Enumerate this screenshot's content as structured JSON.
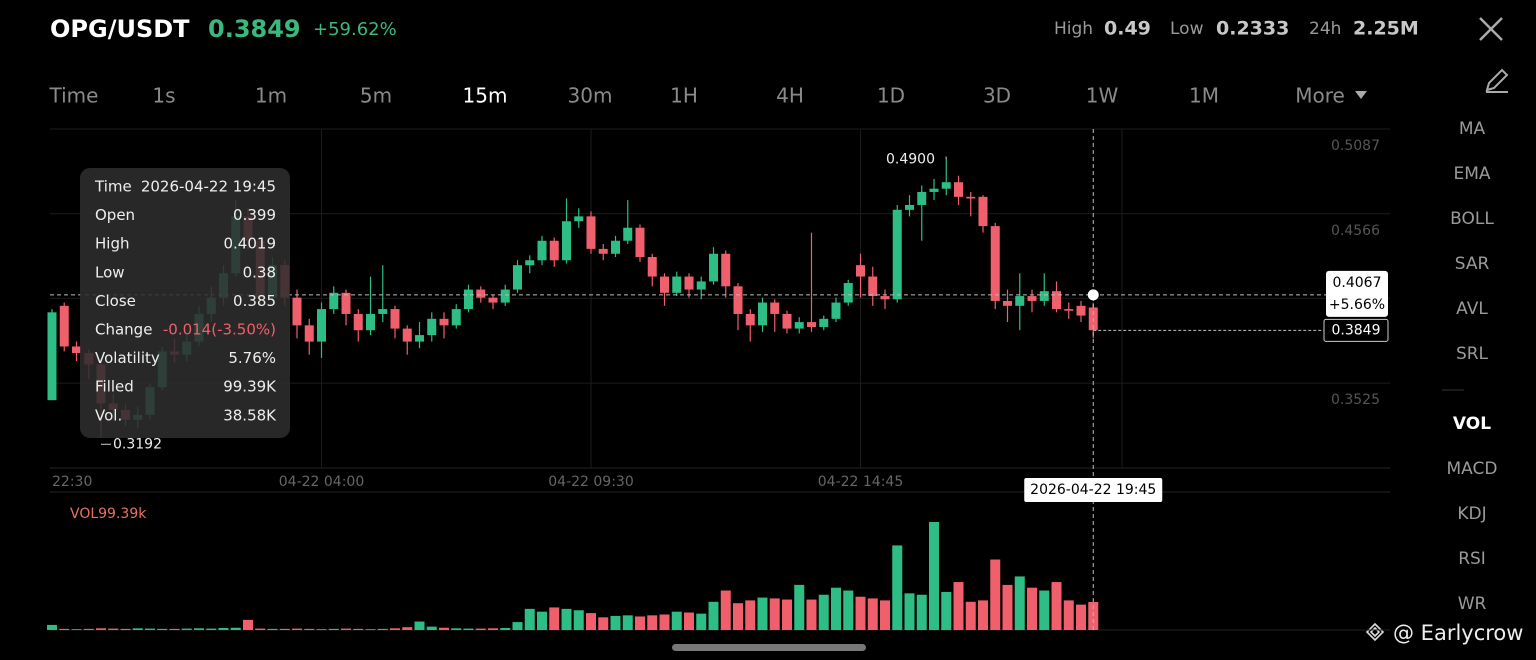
{
  "header": {
    "pair": "OPG/USDT",
    "price": "0.3849",
    "change": "+59.62%",
    "high_label": "High",
    "high": "0.49",
    "low_label": "Low",
    "low": "0.2333",
    "vol_label": "24h",
    "vol": "2.25M"
  },
  "tabs": [
    {
      "label": "Time"
    },
    {
      "label": "1s"
    },
    {
      "label": "1m"
    },
    {
      "label": "5m"
    },
    {
      "label": "15m",
      "active": true
    },
    {
      "label": "30m"
    },
    {
      "label": "1H"
    },
    {
      "label": "4H"
    },
    {
      "label": "1D"
    },
    {
      "label": "3D"
    },
    {
      "label": "1W"
    },
    {
      "label": "1M"
    },
    {
      "label": "More"
    }
  ],
  "indicators": [
    {
      "label": "MA"
    },
    {
      "label": "EMA"
    },
    {
      "label": "BOLL"
    },
    {
      "label": "SAR"
    },
    {
      "label": "AVL"
    },
    {
      "label": "SRL"
    },
    {
      "label": "VOL",
      "active": true
    },
    {
      "label": "MACD"
    },
    {
      "label": "KDJ"
    },
    {
      "label": "RSI"
    },
    {
      "label": "WR"
    }
  ],
  "chart": {
    "type": "candlestick",
    "up_color": "#2ebd85",
    "down_color": "#ef5f6c",
    "ylim": [
      0.3003,
      0.5087
    ],
    "yticks": [
      0.5087,
      0.4566,
      0.3525
    ],
    "xticks": [
      {
        "value": 0,
        "label": "22:30"
      },
      {
        "value": 22,
        "label": "04-22 04:00"
      },
      {
        "value": 44,
        "label": "04-22 09:30"
      },
      {
        "value": 66,
        "label": "04-22 14:45"
      }
    ],
    "candles": [
      [
        0.342,
        0.398,
        0.342,
        0.396
      ],
      [
        0.4,
        0.402,
        0.372,
        0.375
      ],
      [
        0.375,
        0.378,
        0.366,
        0.371
      ],
      [
        0.371,
        0.373,
        0.355,
        0.364
      ],
      [
        0.364,
        0.366,
        0.3192,
        0.34
      ],
      [
        0.34,
        0.346,
        0.33,
        0.336
      ],
      [
        0.336,
        0.34,
        0.326,
        0.33
      ],
      [
        0.33,
        0.338,
        0.325,
        0.333
      ],
      [
        0.333,
        0.352,
        0.33,
        0.35
      ],
      [
        0.35,
        0.375,
        0.348,
        0.372
      ],
      [
        0.372,
        0.38,
        0.365,
        0.37
      ],
      [
        0.37,
        0.382,
        0.366,
        0.378
      ],
      [
        0.378,
        0.4,
        0.375,
        0.395
      ],
      [
        0.395,
        0.412,
        0.39,
        0.405
      ],
      [
        0.405,
        0.425,
        0.4,
        0.42
      ],
      [
        0.42,
        0.465,
        0.418,
        0.455
      ],
      [
        0.455,
        0.46,
        0.435,
        0.44
      ],
      [
        0.44,
        0.442,
        0.4,
        0.405
      ],
      [
        0.405,
        0.43,
        0.402,
        0.425
      ],
      [
        0.425,
        0.428,
        0.4,
        0.405
      ],
      [
        0.405,
        0.41,
        0.38,
        0.388
      ],
      [
        0.388,
        0.392,
        0.37,
        0.378
      ],
      [
        0.378,
        0.402,
        0.368,
        0.398
      ],
      [
        0.398,
        0.412,
        0.395,
        0.408
      ],
      [
        0.408,
        0.41,
        0.388,
        0.395
      ],
      [
        0.395,
        0.398,
        0.378,
        0.385
      ],
      [
        0.385,
        0.418,
        0.382,
        0.395
      ],
      [
        0.395,
        0.425,
        0.39,
        0.398
      ],
      [
        0.398,
        0.4,
        0.38,
        0.386
      ],
      [
        0.386,
        0.388,
        0.37,
        0.378
      ],
      [
        0.378,
        0.39,
        0.374,
        0.382
      ],
      [
        0.382,
        0.396,
        0.378,
        0.392
      ],
      [
        0.392,
        0.396,
        0.38,
        0.388
      ],
      [
        0.388,
        0.401,
        0.386,
        0.398
      ],
      [
        0.398,
        0.413,
        0.396,
        0.41
      ],
      [
        0.41,
        0.412,
        0.402,
        0.405
      ],
      [
        0.405,
        0.407,
        0.398,
        0.402
      ],
      [
        0.402,
        0.413,
        0.4,
        0.41
      ],
      [
        0.41,
        0.428,
        0.408,
        0.425
      ],
      [
        0.425,
        0.431,
        0.42,
        0.428
      ],
      [
        0.428,
        0.443,
        0.425,
        0.44
      ],
      [
        0.44,
        0.442,
        0.424,
        0.428
      ],
      [
        0.428,
        0.466,
        0.426,
        0.452
      ],
      [
        0.452,
        0.46,
        0.448,
        0.455
      ],
      [
        0.455,
        0.458,
        0.432,
        0.435
      ],
      [
        0.435,
        0.438,
        0.428,
        0.432
      ],
      [
        0.432,
        0.443,
        0.43,
        0.44
      ],
      [
        0.44,
        0.465,
        0.438,
        0.448
      ],
      [
        0.448,
        0.45,
        0.427,
        0.43
      ],
      [
        0.43,
        0.432,
        0.412,
        0.418
      ],
      [
        0.418,
        0.42,
        0.4,
        0.408
      ],
      [
        0.408,
        0.421,
        0.406,
        0.418
      ],
      [
        0.418,
        0.42,
        0.405,
        0.41
      ],
      [
        0.41,
        0.418,
        0.404,
        0.415
      ],
      [
        0.415,
        0.436,
        0.413,
        0.432
      ],
      [
        0.432,
        0.434,
        0.405,
        0.412
      ],
      [
        0.412,
        0.414,
        0.385,
        0.395
      ],
      [
        0.395,
        0.398,
        0.378,
        0.388
      ],
      [
        0.388,
        0.405,
        0.384,
        0.402
      ],
      [
        0.402,
        0.404,
        0.384,
        0.395
      ],
      [
        0.395,
        0.397,
        0.383,
        0.386
      ],
      [
        0.386,
        0.393,
        0.383,
        0.39
      ],
      [
        0.39,
        0.445,
        0.384,
        0.387
      ],
      [
        0.387,
        0.394,
        0.385,
        0.392
      ],
      [
        0.392,
        0.405,
        0.39,
        0.402
      ],
      [
        0.402,
        0.416,
        0.4,
        0.414
      ],
      [
        0.425,
        0.432,
        0.405,
        0.418
      ],
      [
        0.418,
        0.424,
        0.4,
        0.406
      ],
      [
        0.406,
        0.41,
        0.398,
        0.404
      ],
      [
        0.404,
        0.462,
        0.402,
        0.459
      ],
      [
        0.459,
        0.468,
        0.455,
        0.462
      ],
      [
        0.462,
        0.474,
        0.44,
        0.47
      ],
      [
        0.47,
        0.478,
        0.465,
        0.472
      ],
      [
        0.472,
        0.49,
        0.468,
        0.476
      ],
      [
        0.476,
        0.48,
        0.462,
        0.467
      ],
      [
        0.467,
        0.47,
        0.455,
        0.466
      ],
      [
        0.467,
        0.468,
        0.445,
        0.449
      ],
      [
        0.449,
        0.451,
        0.398,
        0.403
      ],
      [
        0.403,
        0.41,
        0.39,
        0.4
      ],
      [
        0.4,
        0.42,
        0.385,
        0.406
      ],
      [
        0.406,
        0.41,
        0.396,
        0.403
      ],
      [
        0.403,
        0.42,
        0.4,
        0.409
      ],
      [
        0.409,
        0.415,
        0.396,
        0.398
      ],
      [
        0.398,
        0.402,
        0.392,
        0.397
      ],
      [
        0.4,
        0.403,
        0.39,
        0.394
      ],
      [
        0.399,
        0.4019,
        0.38,
        0.385
      ]
    ],
    "volume": [
      18,
      4,
      3,
      4,
      6,
      5,
      4,
      6,
      5,
      4,
      4,
      5,
      6,
      5,
      7,
      8,
      36,
      5,
      4,
      4,
      5,
      4,
      3,
      4,
      5,
      4,
      3,
      4,
      6,
      10,
      30,
      12,
      8,
      6,
      5,
      5,
      6,
      7,
      28,
      75,
      65,
      80,
      75,
      70,
      60,
      45,
      50,
      52,
      48,
      52,
      55,
      65,
      62,
      58,
      100,
      140,
      95,
      105,
      115,
      112,
      108,
      160,
      108,
      125,
      150,
      140,
      118,
      112,
      105,
      300,
      130,
      125,
      383,
      135,
      170,
      100,
      105,
      250,
      160,
      190,
      150,
      140,
      170,
      105,
      90,
      99.39
    ],
    "volume_label": "VOL99.39k",
    "high_annotation": {
      "label": "0.4900",
      "index": 73
    },
    "low_annotation": {
      "label": "0.3192",
      "index": 4
    },
    "crosshair": {
      "index": 85,
      "price": 0.4067,
      "change": "+5.66%",
      "time": "2026-04-22 19:45"
    },
    "last_price": 0.3849,
    "tooltip": [
      {
        "label": "Time",
        "value": "2026-04-22 19:45"
      },
      {
        "label": "Open",
        "value": "0.399"
      },
      {
        "label": "High",
        "value": "0.4019"
      },
      {
        "label": "Low",
        "value": "0.38"
      },
      {
        "label": "Close",
        "value": "0.385"
      },
      {
        "label": "Change",
        "value": "-0.014(-3.50%)",
        "negative": true
      },
      {
        "label": "Volatility",
        "value": "5.76%"
      },
      {
        "label": "Filled",
        "value": "99.39K"
      },
      {
        "label": "Vol.",
        "value": "38.58K"
      }
    ]
  },
  "watermark": "@ Earlycrow"
}
